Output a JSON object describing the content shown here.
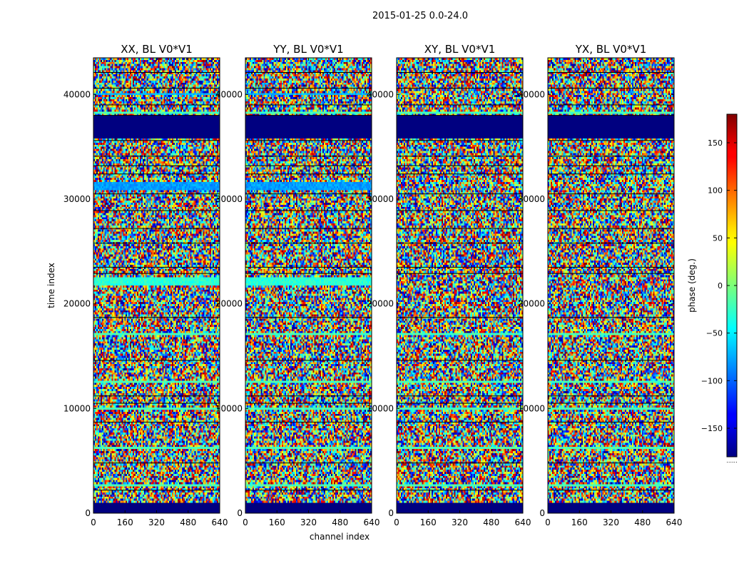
{
  "chart_data": {
    "type": "heatmap",
    "suptitle": "2015-01-25 0.0-24.0",
    "xlabel": "channel index",
    "ylabel": "time index",
    "colorbar_label": "phase (deg.)",
    "colormap": "jet",
    "x_range": [
      0,
      640
    ],
    "y_range": [
      0,
      43500
    ],
    "x_ticks": [
      0,
      160,
      320,
      480,
      640
    ],
    "y_ticks": [
      0,
      10000,
      20000,
      30000,
      40000
    ],
    "colorbar_range": [
      -180,
      180
    ],
    "colorbar_ticks": [
      -150,
      -100,
      -50,
      0,
      50,
      100,
      150
    ],
    "colorbar_tick_labels": [
      "−150",
      "−100",
      "−50",
      "0",
      "50",
      "100",
      "150"
    ],
    "colorbar_footer": "......",
    "panels": [
      {
        "title": "XX, BL V0*V1",
        "show_ylabel": true,
        "show_xlabel": false
      },
      {
        "title": "YY, BL V0*V1",
        "show_ylabel": false,
        "show_xlabel": true
      },
      {
        "title": "XY, BL V0*V1",
        "show_ylabel": false,
        "show_xlabel": false
      },
      {
        "title": "YX, BL V0*V1",
        "show_ylabel": false,
        "show_xlabel": false
      }
    ],
    "flagged_time_ranges": [
      [
        0,
        900
      ],
      [
        35700,
        37900
      ]
    ],
    "uniform_phase_bands_deg": [
      {
        "range": [
          2600,
          2800
        ],
        "phase": -20
      },
      {
        "range": [
          6200,
          6400
        ],
        "phase": -20
      },
      {
        "range": [
          9800,
          10000
        ],
        "phase": -20
      },
      {
        "range": [
          12400,
          12600
        ],
        "phase": -20
      },
      {
        "range": [
          17000,
          17300
        ],
        "phase": -20
      },
      {
        "range": [
          21800,
          22600
        ],
        "phase": -30
      },
      {
        "range": [
          30800,
          31600
        ],
        "phase": -80
      },
      {
        "range": [
          38200,
          38400
        ],
        "phase": -20
      },
      {
        "range": [
          39900,
          40200
        ],
        "phase": -70
      }
    ],
    "gap_lines": [
      2200,
      4800,
      8700,
      10500,
      11200,
      14600,
      18700,
      22900,
      23500,
      25800,
      27200,
      28900,
      30500,
      32400,
      33200,
      34100,
      35600,
      38000,
      39000,
      40600,
      42100
    ]
  }
}
